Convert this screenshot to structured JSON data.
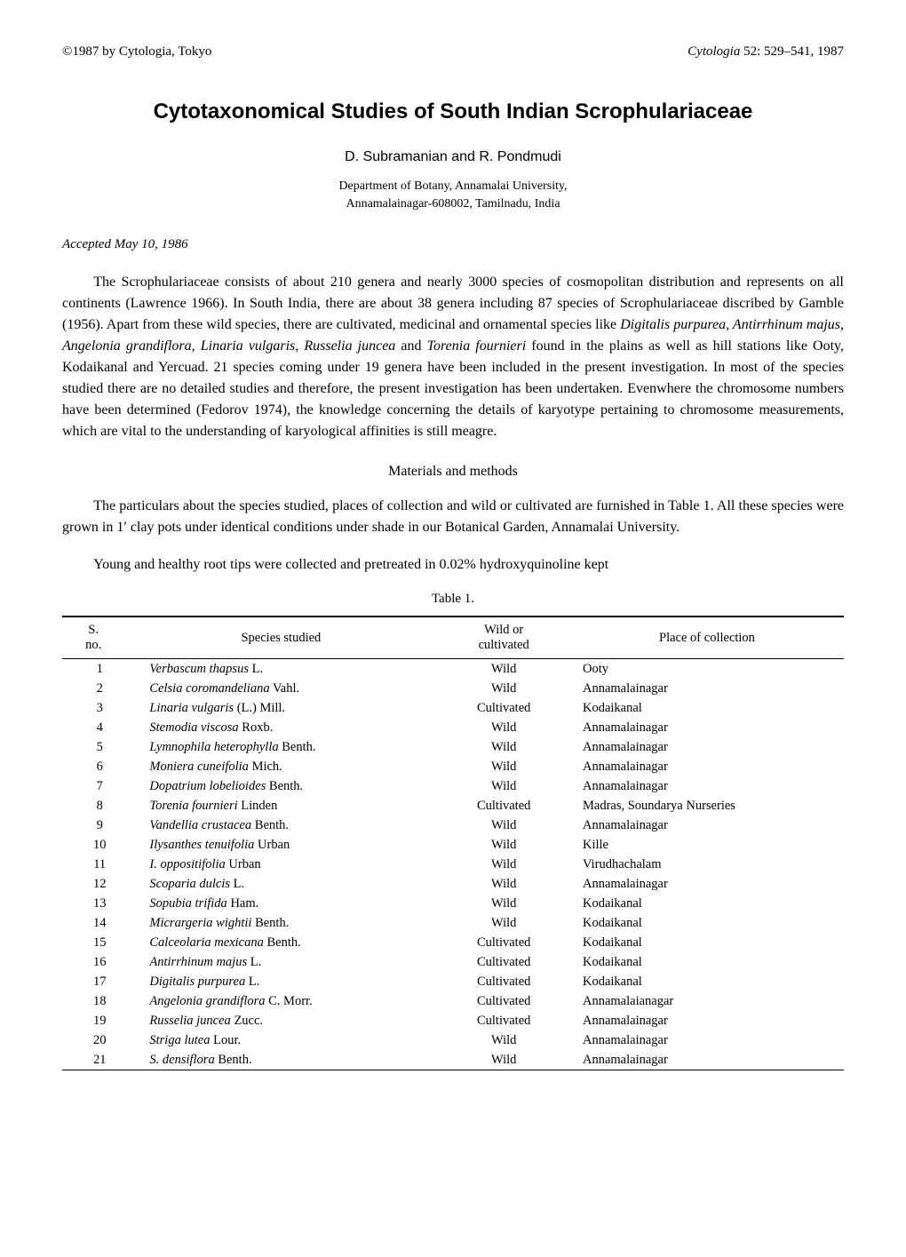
{
  "header": {
    "copyright": "©1987 by Cytologia, Tokyo",
    "citation": "Cytologia 52: 529–541, 1987"
  },
  "title": "Cytotaxonomical Studies of South Indian Scrophulariaceae",
  "authors": "D. Subramanian and R. Pondmudi",
  "affiliation_line1": "Department of Botany, Annamalai University,",
  "affiliation_line2": "Annamalainagar-608002, Tamilnadu, India",
  "accepted": "Accepted May 10, 1986",
  "intro_paragraph": "The Scrophulariaceae consists of about 210 genera and nearly 3000 species of cosmopolitan distribution and represents on all continents (Lawrence 1966). In South India, there are about 38 genera including 87 species of Scrophulariaceae discribed by Gamble (1956). Apart from these wild species, there are cultivated, medicinal and ornamental species like Digitalis purpurea, Antirrhinum majus, Angelonia grandiflora, Linaria vulgaris, Russelia juncea and Torenia fournieri found in the plains as well as hill stations like Ooty, Kodaikanal and Yercuad. 21 species coming under 19 genera have been included in the present investigation. In most of the species studied there are no detailed studies and therefore, the present investigation has been undertaken. Evenwhere the chromosome numbers have been determined (Fedorov 1974), the knowledge concerning the details of karyotype pertaining to chromosome measurements, which are vital to the understanding of karyological affinities is still meagre.",
  "section_heading": "Materials and methods",
  "methods_para1": "The particulars about the species studied, places of collection and wild or cultivated are furnished in Table 1. All these species were grown in 1′ clay pots under identical conditions under shade in our Botanical Garden, Annamalai University.",
  "methods_para2": "Young and healthy root tips were collected and pretreated in 0.02% hydroxyquinoline kept",
  "table": {
    "caption": "Table 1.",
    "columns": {
      "sno": "S.\nno.",
      "species": "Species studied",
      "wild": "Wild or\ncultivated",
      "place": "Place of collection"
    },
    "rows": [
      {
        "sno": "1",
        "species_italic": "Verbascum thapsus",
        "species_auth": " L.",
        "wild": "Wild",
        "place": "Ooty"
      },
      {
        "sno": "2",
        "species_italic": "Celsia coromandeliana",
        "species_auth": " Vahl.",
        "wild": "Wild",
        "place": "Annamalainagar"
      },
      {
        "sno": "3",
        "species_italic": "Linaria vulgaris",
        "species_auth": " (L.) Mill.",
        "wild": "Cultivated",
        "place": "Kodaikanal"
      },
      {
        "sno": "4",
        "species_italic": "Stemodia viscosa",
        "species_auth": " Roxb.",
        "wild": "Wild",
        "place": "Annamalainagar"
      },
      {
        "sno": "5",
        "species_italic": "Lymnophila heterophylla",
        "species_auth": " Benth.",
        "wild": "Wild",
        "place": "Annamalainagar"
      },
      {
        "sno": "6",
        "species_italic": "Moniera cuneifolia",
        "species_auth": " Mich.",
        "wild": "Wild",
        "place": "Annamalainagar"
      },
      {
        "sno": "7",
        "species_italic": "Dopatrium lobelioides",
        "species_auth": " Benth.",
        "wild": "Wild",
        "place": "Annamalainagar"
      },
      {
        "sno": "8",
        "species_italic": "Torenia fournieri",
        "species_auth": " Linden",
        "wild": "Cultivated",
        "place": "Madras, Soundarya Nurseries"
      },
      {
        "sno": "9",
        "species_italic": "Vandellia crustacea",
        "species_auth": " Benth.",
        "wild": "Wild",
        "place": "Annamalainagar"
      },
      {
        "sno": "10",
        "species_italic": "Ilysanthes tenuifolia",
        "species_auth": " Urban",
        "wild": "Wild",
        "place": "Kille"
      },
      {
        "sno": "11",
        "species_italic": "I. oppositifolia",
        "species_auth": " Urban",
        "wild": "Wild",
        "place": "Virudhachalam"
      },
      {
        "sno": "12",
        "species_italic": "Scoparia dulcis",
        "species_auth": " L.",
        "wild": "Wild",
        "place": "Annamalainagar"
      },
      {
        "sno": "13",
        "species_italic": "Sopubia trifida",
        "species_auth": " Ham.",
        "wild": "Wild",
        "place": "Kodaikanal"
      },
      {
        "sno": "14",
        "species_italic": "Micrargeria wightii",
        "species_auth": " Benth.",
        "wild": "Wild",
        "place": "Kodaikanal"
      },
      {
        "sno": "15",
        "species_italic": "Calceolaria mexicana",
        "species_auth": " Benth.",
        "wild": "Cultivated",
        "place": "Kodaikanal"
      },
      {
        "sno": "16",
        "species_italic": "Antirrhinum majus",
        "species_auth": " L.",
        "wild": "Cultivated",
        "place": "Kodaikanal"
      },
      {
        "sno": "17",
        "species_italic": "Digitalis purpurea",
        "species_auth": " L.",
        "wild": "Cultivated",
        "place": "Kodaikanal"
      },
      {
        "sno": "18",
        "species_italic": "Angelonia grandiflora",
        "species_auth": " C. Morr.",
        "wild": "Cultivated",
        "place": "Annamalaianagar"
      },
      {
        "sno": "19",
        "species_italic": "Russelia juncea",
        "species_auth": " Zucc.",
        "wild": "Cultivated",
        "place": "Annamalainagar"
      },
      {
        "sno": "20",
        "species_italic": "Striga lutea",
        "species_auth": " Lour.",
        "wild": "Wild",
        "place": "Annamalainagar"
      },
      {
        "sno": "21",
        "species_italic": "S. densiflora",
        "species_auth": " Benth.",
        "wild": "Wild",
        "place": "Annamalainagar"
      }
    ]
  }
}
